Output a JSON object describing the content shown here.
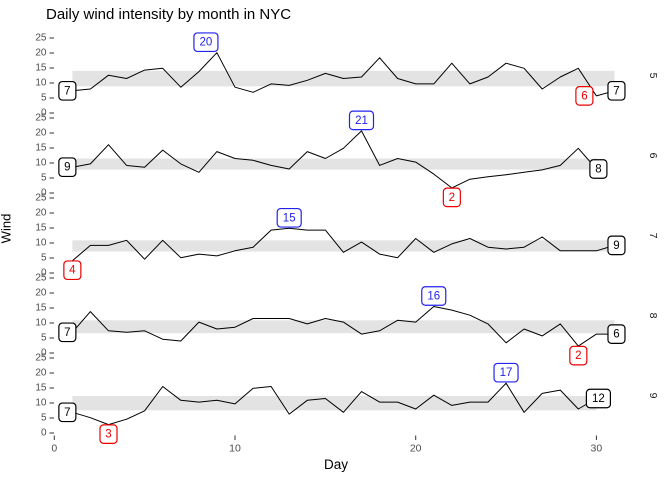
{
  "title": "Daily wind intensity by month in NYC",
  "axes": {
    "x_label": "Day",
    "y_label": "Wind",
    "x_ticks": [
      0,
      10,
      20,
      30
    ],
    "y_ticks": [
      0,
      5,
      10,
      15,
      20,
      25
    ]
  },
  "colors": {
    "line": "#000000",
    "band": "#E3E3E3",
    "max": "#2222EE",
    "min": "#EE0000",
    "end": "#000000",
    "tick_text": "#4D4D4D",
    "tick_mark": "#333333",
    "strip_text": "#1A1A1A",
    "label_fill": "#FFFFFF"
  },
  "chart_data": {
    "type": "line",
    "title": "Daily wind intensity by month in NYC",
    "xlabel": "Day",
    "ylabel": "Wind",
    "facet_variable": "Month",
    "x_range": [
      0,
      31
    ],
    "y_ticks": [
      0,
      5,
      10,
      15,
      20,
      25
    ],
    "grid": false,
    "facets": [
      {
        "month": "5",
        "days_start": 1,
        "values": [
          7.4,
          8.0,
          12.6,
          11.5,
          14.3,
          14.9,
          8.6,
          13.8,
          20.1,
          8.6,
          6.9,
          9.7,
          9.2,
          10.9,
          13.2,
          11.5,
          12.0,
          18.4,
          11.5,
          9.7,
          9.7,
          16.6,
          9.7,
          12.0,
          16.6,
          14.9,
          8.0,
          12.0,
          14.9,
          5.7,
          7.4
        ],
        "band_iqr": [
          8.9,
          14.05
        ],
        "annotations": [
          {
            "kind": "first",
            "day": 1,
            "label": "7"
          },
          {
            "kind": "max",
            "day": 9,
            "label": "20",
            "dx": -11
          },
          {
            "kind": "min",
            "day": 30,
            "label": "6",
            "placement": "left"
          },
          {
            "kind": "last",
            "day": 31,
            "label": "7"
          }
        ]
      },
      {
        "month": "6",
        "days_start": 1,
        "values": [
          8.6,
          9.7,
          16.1,
          9.2,
          8.6,
          14.3,
          9.7,
          6.9,
          13.8,
          11.5,
          10.9,
          9.2,
          8.0,
          13.8,
          11.5,
          14.9,
          20.7,
          9.2,
          11.5,
          10.3,
          6.3,
          1.7,
          4.6,
          5.4,
          6.1,
          6.9,
          7.7,
          9.2,
          14.9,
          8.0
        ],
        "band_iqr": [
          7.8,
          11.5
        ],
        "annotations": [
          {
            "kind": "first",
            "day": 1,
            "label": "9"
          },
          {
            "kind": "max",
            "day": 17,
            "label": "21"
          },
          {
            "kind": "min",
            "day": 22,
            "label": "2"
          },
          {
            "kind": "last",
            "day": 30,
            "label": "8"
          }
        ]
      },
      {
        "month": "7",
        "days_start": 1,
        "values": [
          4.1,
          9.2,
          9.2,
          10.9,
          4.6,
          10.9,
          5.1,
          6.3,
          5.7,
          7.4,
          8.6,
          14.3,
          14.9,
          14.3,
          14.3,
          6.9,
          10.3,
          6.3,
          5.1,
          11.5,
          6.9,
          9.7,
          11.5,
          8.6,
          8.0,
          8.6,
          12.0,
          7.4,
          7.4,
          7.4,
          9.2
        ],
        "band_iqr": [
          7.15,
          10.9
        ],
        "annotations": [
          {
            "kind": "min",
            "day": 1,
            "label": "4"
          },
          {
            "kind": "max",
            "day": 13,
            "label": "15"
          },
          {
            "kind": "last",
            "day": 31,
            "label": "9"
          }
        ]
      },
      {
        "month": "8",
        "days_start": 1,
        "values": [
          6.9,
          13.8,
          7.4,
          6.9,
          7.4,
          4.6,
          4.0,
          10.3,
          8.0,
          8.6,
          11.5,
          11.5,
          11.5,
          9.7,
          11.5,
          10.3,
          6.3,
          7.4,
          10.9,
          10.3,
          15.5,
          14.3,
          12.6,
          9.7,
          3.4,
          8.0,
          5.7,
          9.7,
          2.3,
          6.3,
          6.3
        ],
        "band_iqr": [
          6.6,
          10.9
        ],
        "annotations": [
          {
            "kind": "first",
            "day": 1,
            "label": "7"
          },
          {
            "kind": "max",
            "day": 21,
            "label": "16"
          },
          {
            "kind": "min",
            "day": 29,
            "label": "2"
          },
          {
            "kind": "last",
            "day": 31,
            "label": "6"
          }
        ]
      },
      {
        "month": "9",
        "days_start": 1,
        "values": [
          6.9,
          5.1,
          2.8,
          4.6,
          7.4,
          15.5,
          10.9,
          10.3,
          10.9,
          9.7,
          14.9,
          15.5,
          6.3,
          10.9,
          11.5,
          6.9,
          13.8,
          10.3,
          10.3,
          8.0,
          12.6,
          9.2,
          10.3,
          10.3,
          16.6,
          6.9,
          13.2,
          14.3,
          8.0,
          11.5
        ],
        "band_iqr": [
          7.55,
          12.33
        ],
        "annotations": [
          {
            "kind": "first",
            "day": 1,
            "label": "7"
          },
          {
            "kind": "min",
            "day": 3,
            "label": "3"
          },
          {
            "kind": "max",
            "day": 25,
            "label": "17"
          },
          {
            "kind": "last",
            "day": 30,
            "label": "12"
          }
        ]
      }
    ]
  }
}
